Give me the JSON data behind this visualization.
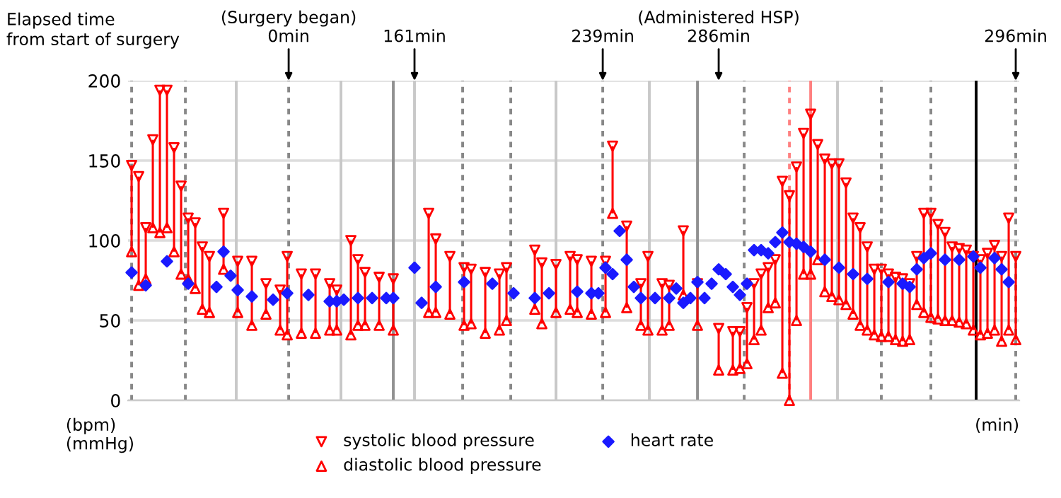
{
  "chart_data": {
    "type": "scatter",
    "title": "Elapsed time\nfrom start of surgery",
    "ylabel": "(bpm)\n(mmHg)",
    "xlabel": "(min)",
    "categories": [
      null,
      null,
      null,
      null,
      null,
      null,
      null,
      null,
      null,
      null,
      null,
      null,
      null,
      null,
      null,
      null,
      null,
      null,
      null,
      null,
      null,
      null,
      null,
      null,
      null,
      null,
      null,
      null,
      null,
      null,
      null,
      null,
      null,
      null,
      null,
      null,
      null,
      null,
      null,
      null,
      null,
      null,
      null,
      null,
      null,
      null,
      null,
      null,
      null,
      null,
      null,
      null,
      null,
      null,
      null,
      null,
      null,
      null,
      null,
      null,
      null,
      null,
      null,
      null,
      null,
      null,
      null,
      null,
      null,
      null,
      null,
      null,
      null,
      null,
      null,
      null,
      null,
      null,
      null,
      null,
      null,
      null,
      null,
      null,
      null,
      null,
      null,
      null,
      null,
      null,
      null,
      null,
      null,
      null,
      null,
      null,
      null,
      null,
      null,
      null,
      null,
      null,
      null,
      null,
      null,
      null,
      null,
      null,
      null,
      null,
      null,
      null,
      null,
      null,
      null,
      null,
      null,
      null,
      null,
      null,
      null,
      null,
      null,
      null,
      null,
      null
    ],
    "series": [
      {
        "name": "systolic blood pressure",
        "marker": "triangle-down",
        "color": "#ff0000",
        "values": [
          147,
          140,
          108,
          163,
          194,
          194,
          158,
          134,
          114,
          111,
          96,
          90,
          null,
          117,
          null,
          87,
          null,
          87,
          null,
          73,
          null,
          69,
          90,
          null,
          79,
          null,
          79,
          null,
          73,
          69,
          null,
          100,
          88,
          80,
          null,
          77,
          null,
          76,
          null,
          null,
          null,
          null,
          117,
          101,
          null,
          90,
          null,
          83,
          82,
          null,
          80,
          null,
          79,
          83,
          null,
          null,
          null,
          94,
          86,
          null,
          85,
          null,
          90,
          88,
          null,
          87,
          null,
          87,
          159,
          null,
          109,
          null,
          73,
          90,
          null,
          73,
          72,
          null,
          106,
          null,
          73,
          null,
          null,
          45,
          null,
          43,
          43,
          58,
          73,
          79,
          83,
          88,
          137,
          128,
          146,
          167,
          179,
          160,
          151,
          148,
          148,
          136,
          114,
          108,
          96,
          82,
          82,
          79,
          77,
          76,
          73,
          90,
          117,
          117,
          110,
          105,
          96,
          95,
          94,
          90,
          88,
          92,
          97,
          90,
          114,
          90
        ]
      },
      {
        "name": "diastolic blood pressure",
        "marker": "triangle",
        "color": "#ff0000",
        "values": [
          93,
          72,
          76,
          108,
          105,
          108,
          93,
          79,
          76,
          70,
          57,
          55,
          null,
          82,
          null,
          55,
          null,
          47,
          null,
          54,
          null,
          44,
          41,
          null,
          42,
          null,
          42,
          null,
          44,
          44,
          null,
          41,
          47,
          47,
          null,
          47,
          null,
          44,
          null,
          null,
          null,
          null,
          55,
          55,
          null,
          54,
          null,
          47,
          48,
          null,
          42,
          null,
          44,
          50,
          null,
          null,
          null,
          57,
          48,
          null,
          55,
          null,
          57,
          55,
          null,
          54,
          null,
          55,
          117,
          null,
          58,
          null,
          47,
          44,
          null,
          44,
          47,
          null,
          66,
          null,
          47,
          null,
          null,
          19,
          null,
          19,
          20,
          23,
          38,
          44,
          58,
          61,
          17,
          0,
          50,
          79,
          79,
          88,
          68,
          65,
          63,
          60,
          54,
          47,
          44,
          41,
          40,
          40,
          38,
          37,
          38,
          60,
          55,
          52,
          51,
          50,
          50,
          49,
          48,
          44,
          41,
          42,
          44,
          37,
          44,
          38
        ]
      },
      {
        "name": "heart rate",
        "marker": "diamond",
        "color": "#1a1aff",
        "values": [
          80,
          null,
          72,
          null,
          null,
          87,
          null,
          null,
          73,
          null,
          null,
          null,
          71,
          93,
          78,
          69,
          null,
          65,
          null,
          null,
          63,
          null,
          67,
          null,
          null,
          66,
          null,
          null,
          62,
          62,
          63,
          null,
          64,
          null,
          64,
          null,
          64,
          64,
          null,
          null,
          83,
          61,
          null,
          71,
          null,
          null,
          null,
          74,
          null,
          null,
          null,
          73,
          null,
          null,
          67,
          null,
          null,
          64,
          null,
          67,
          null,
          null,
          null,
          68,
          null,
          67,
          67,
          83,
          79,
          106,
          88,
          71,
          64,
          null,
          64,
          null,
          64,
          70,
          61,
          64,
          74,
          64,
          73,
          82,
          79,
          71,
          66,
          73,
          94,
          94,
          92,
          99,
          105,
          99,
          98,
          96,
          93,
          null,
          88,
          null,
          83,
          null,
          79,
          null,
          76,
          null,
          null,
          74,
          null,
          73,
          71,
          82,
          89,
          92,
          null,
          88,
          null,
          88,
          null,
          90,
          83,
          null,
          89,
          82,
          74,
          null
        ]
      }
    ],
    "ylim": [
      0,
      200
    ],
    "yticks": [
      0,
      50,
      100,
      150,
      200
    ],
    "grid": "y",
    "legend": "bottom",
    "tick_labels": "y",
    "annotations": [
      "(Surgery began)\n0min",
      "161min",
      "239min",
      "(Administered HSP)\n286min",
      "296min"
    ]
  }
}
